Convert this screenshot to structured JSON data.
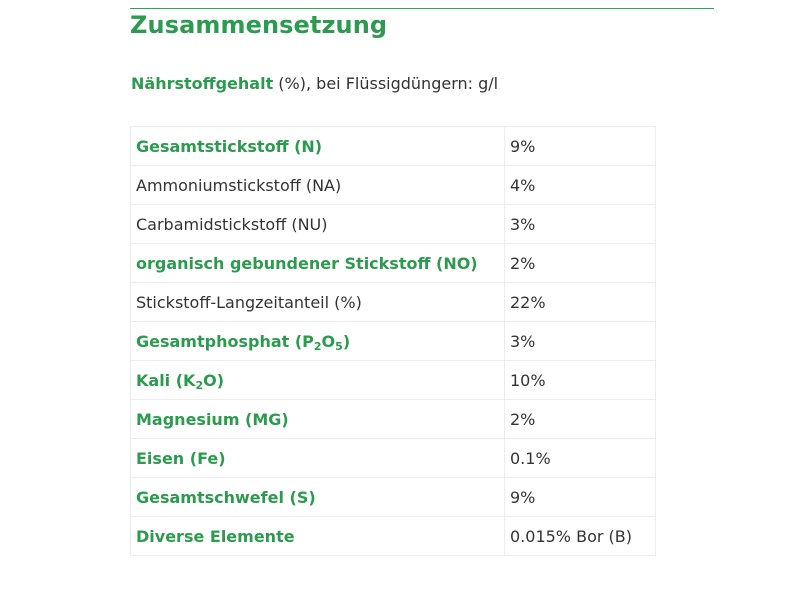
{
  "page_title": "Zusammensetzung",
  "subheading": {
    "strong": "Nährstoffgehalt",
    "rest": " (%), bei Flüssigdüngern: g/l"
  },
  "table": {
    "rows": [
      {
        "name": "Gesamtstickstoff (N)",
        "value": "9%",
        "highlight": true
      },
      {
        "name": "Ammoniumstickstoff (NA)",
        "value": "4%",
        "highlight": false
      },
      {
        "name": "Carbamidstickstoff (NU)",
        "value": "3%",
        "highlight": false
      },
      {
        "name": "organisch gebundener Stickstoff (NO)",
        "value": "2%",
        "highlight": true
      },
      {
        "name": "Stickstoff-Langzeitanteil (%)",
        "value": "22%",
        "highlight": false
      },
      {
        "name_parts": [
          "Gesamtphosphat (P",
          "2",
          "O",
          "5",
          ")"
        ],
        "value": "3%",
        "highlight": true
      },
      {
        "name_parts": [
          "Kali (K",
          "2",
          "O)"
        ],
        "value": "10%",
        "highlight": true
      },
      {
        "name": "Magnesium (MG)",
        "value": "2%",
        "highlight": true
      },
      {
        "name": "Eisen (Fe)",
        "value": "0.1%",
        "highlight": true
      },
      {
        "name": "Gesamtschwefel (S)",
        "value": "9%",
        "highlight": true
      },
      {
        "name": "Diverse Elemente",
        "value": "0.015% Bor (B)",
        "highlight": true
      }
    ]
  },
  "colors": {
    "accent": "#2c9b4f",
    "text": "#333333",
    "border": "#ececec"
  }
}
